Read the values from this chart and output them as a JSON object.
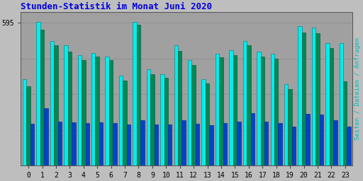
{
  "title": "Stunden-Statistik im Monat Juni 2020",
  "title_color": "#0000dd",
  "background_color": "#bebebe",
  "plot_bg_color": "#a0a0a0",
  "ylabel_right": "Seiten / Dateien / Anfragen",
  "ylabel_right_color": "#00bbbb",
  "hours": [
    0,
    1,
    2,
    3,
    4,
    5,
    6,
    7,
    8,
    9,
    10,
    11,
    12,
    13,
    14,
    15,
    16,
    17,
    18,
    19,
    20,
    21,
    22,
    23
  ],
  "ytick_label": "595",
  "seiten": [
    360,
    600,
    520,
    500,
    460,
    470,
    455,
    375,
    600,
    400,
    380,
    500,
    440,
    360,
    465,
    480,
    520,
    475,
    465,
    340,
    580,
    575,
    510,
    510
  ],
  "dateien": [
    330,
    565,
    500,
    475,
    440,
    455,
    440,
    355,
    588,
    380,
    365,
    478,
    418,
    342,
    450,
    460,
    500,
    455,
    445,
    320,
    555,
    552,
    490,
    350
  ],
  "anfragen": [
    175,
    240,
    182,
    180,
    178,
    180,
    178,
    172,
    190,
    172,
    172,
    188,
    174,
    168,
    178,
    184,
    218,
    184,
    178,
    163,
    215,
    214,
    188,
    163
  ],
  "bar_width": 0.28,
  "ylim": [
    0,
    640
  ],
  "ytick_val": 595,
  "figsize": [
    5.12,
    2.56
  ],
  "dpi": 100
}
